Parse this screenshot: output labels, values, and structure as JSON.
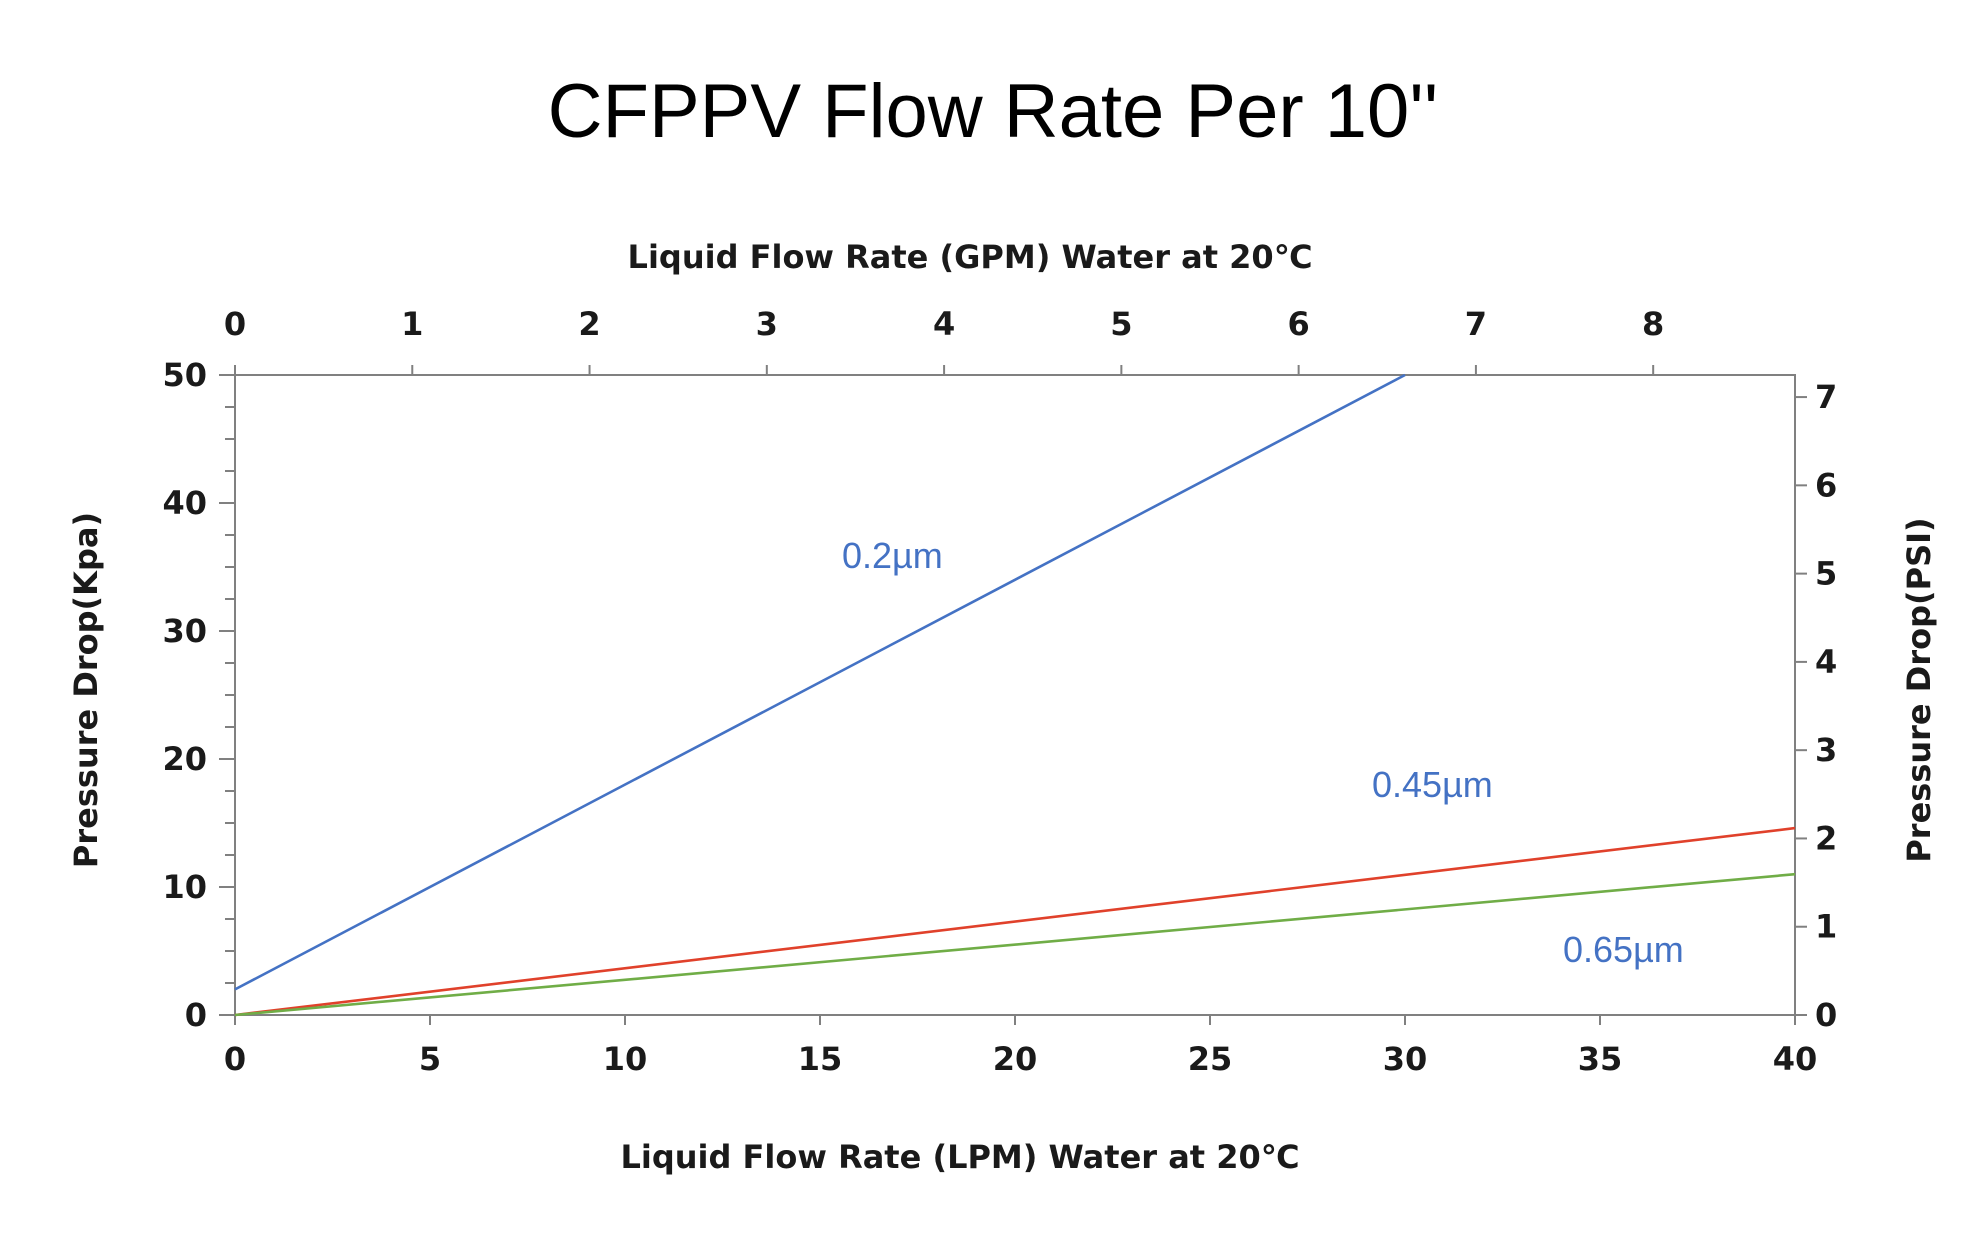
{
  "chart_data": {
    "type": "line",
    "title": "CFPPV Flow Rate Per 10''",
    "xlabel": "Liquid Flow Rate (LPM) Water at 20℃",
    "x2label": "Liquid Flow Rate (GPM) Water at 20℃",
    "ylabel": "Pressure Drop(Kpa)",
    "y2label": "Pressure Drop(PSI)",
    "xlim": [
      0,
      40
    ],
    "ylim": [
      0,
      50
    ],
    "x2lim": [
      0,
      8.8
    ],
    "y2lim": [
      0,
      7.25
    ],
    "xticks": [
      "0",
      "5",
      "10",
      "15",
      "20",
      "25",
      "30",
      "35",
      "40"
    ],
    "yticks": [
      "0",
      "10",
      "20",
      "30",
      "40",
      "50"
    ],
    "x2ticks": [
      "0",
      "1",
      "2",
      "3",
      "4",
      "5",
      "6",
      "7",
      "8"
    ],
    "y2ticks": [
      "0",
      "1",
      "2",
      "3",
      "4",
      "5",
      "6",
      "7"
    ],
    "grid": false,
    "series": [
      {
        "name": "0.2µm",
        "color": "#4472c4",
        "x": [
          0,
          30
        ],
        "y": [
          2,
          50
        ]
      },
      {
        "name": "0.45µm",
        "color": "#e0412b",
        "x": [
          0,
          40
        ],
        "y": [
          0,
          14.6
        ]
      },
      {
        "name": "0.65µm",
        "color": "#70ad47",
        "x": [
          0,
          40
        ],
        "y": [
          0,
          11
        ]
      }
    ]
  }
}
